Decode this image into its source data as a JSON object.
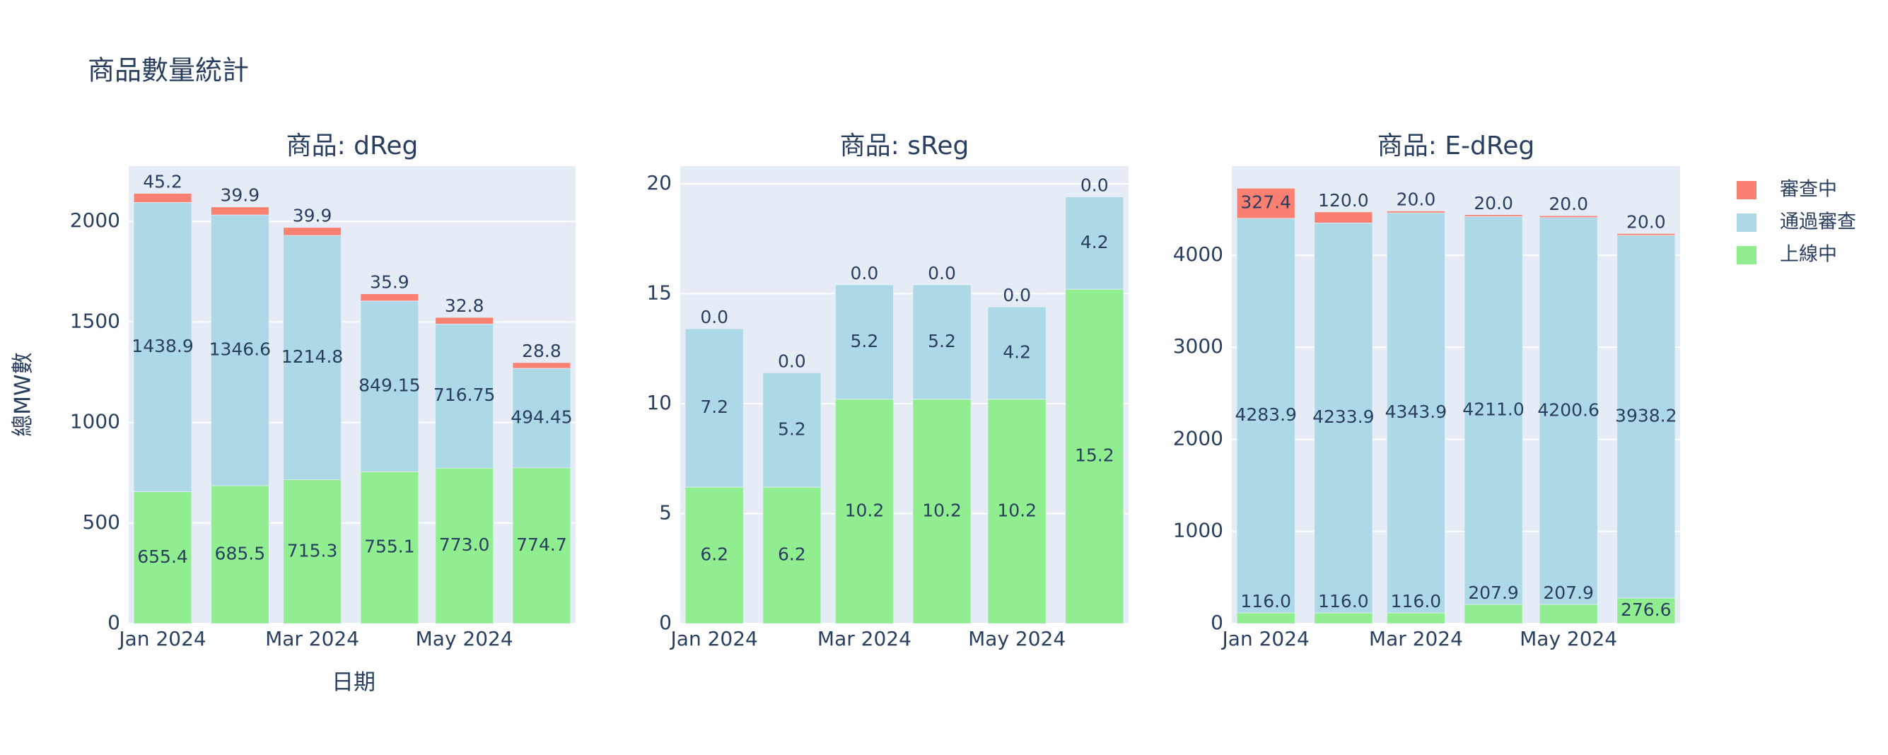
{
  "title": "商品數量統計",
  "x_title": "日期",
  "y_title": "總MW數",
  "chart_data": [
    {
      "type": "bar",
      "title": "商品: dReg",
      "x": [
        "2024-01",
        "2024-02",
        "2024-03",
        "2024-04",
        "2024-05",
        "2024-06"
      ],
      "xticks": [
        {
          "value": "2024-01",
          "label": "Jan 2024"
        },
        {
          "value": "2024-03",
          "label": "Mar 2024"
        },
        {
          "value": "2024-05",
          "label": "May 2024"
        }
      ],
      "ylim": [
        0,
        2275
      ],
      "yticks": [
        0,
        500,
        1000,
        1500,
        2000
      ],
      "grid": true,
      "series": [
        {
          "name": "上線中",
          "color": "#90ee90",
          "values": [
            655.4,
            685.5,
            715.3,
            755.1,
            773.0,
            774.7
          ],
          "value_labels": [
            "655.4",
            "685.5",
            "715.3",
            "755.1",
            "773.0",
            "774.7"
          ]
        },
        {
          "name": "通過審查",
          "color": "#add8e6",
          "values": [
            1438.9,
            1346.6,
            1214.8,
            849.15,
            716.75,
            494.45
          ],
          "value_labels": [
            "1438.9",
            "1346.6",
            "1214.8",
            "849.15",
            "716.75",
            "494.45"
          ]
        },
        {
          "name": "審查中",
          "color": "#fa8072",
          "values": [
            45.2,
            39.9,
            39.9,
            35.9,
            32.8,
            28.8
          ],
          "value_labels": [
            "45.2",
            "39.9",
            "39.9",
            "35.9",
            "32.8",
            "28.8"
          ]
        }
      ]
    },
    {
      "type": "bar",
      "title": "商品: sReg",
      "x": [
        "2024-01",
        "2024-02",
        "2024-03",
        "2024-04",
        "2024-05",
        "2024-06"
      ],
      "xticks": [
        {
          "value": "2024-01",
          "label": "Jan 2024"
        },
        {
          "value": "2024-03",
          "label": "Mar 2024"
        },
        {
          "value": "2024-05",
          "label": "May 2024"
        }
      ],
      "ylim": [
        0,
        20.8
      ],
      "yticks": [
        0,
        5,
        10,
        15,
        20
      ],
      "grid": true,
      "series": [
        {
          "name": "上線中",
          "color": "#90ee90",
          "values": [
            6.2,
            6.2,
            10.2,
            10.2,
            10.2,
            15.2
          ],
          "value_labels": [
            "6.2",
            "6.2",
            "10.2",
            "10.2",
            "10.2",
            "15.2"
          ]
        },
        {
          "name": "通過審查",
          "color": "#add8e6",
          "values": [
            7.2,
            5.2,
            5.2,
            5.2,
            4.2,
            4.2
          ],
          "value_labels": [
            "7.2",
            "5.2",
            "5.2",
            "5.2",
            "4.2",
            "4.2"
          ]
        },
        {
          "name": "審查中",
          "color": "#fa8072",
          "values": [
            0,
            0,
            0,
            0,
            0,
            0
          ],
          "value_labels": [
            "0.0",
            "0.0",
            "0.0",
            "0.0",
            "0.0",
            "0.0"
          ]
        }
      ]
    },
    {
      "type": "bar",
      "title": "商品: E-dReg",
      "x": [
        "2024-01",
        "2024-02",
        "2024-03",
        "2024-04",
        "2024-05",
        "2024-06"
      ],
      "xticks": [
        {
          "value": "2024-01",
          "label": "Jan 2024"
        },
        {
          "value": "2024-03",
          "label": "Mar 2024"
        },
        {
          "value": "2024-05",
          "label": "May 2024"
        }
      ],
      "ylim": [
        0,
        4967
      ],
      "yticks": [
        0,
        1000,
        2000,
        3000,
        4000
      ],
      "grid": true,
      "series": [
        {
          "name": "上線中",
          "color": "#90ee90",
          "values": [
            116.0,
            116.0,
            116.0,
            207.9,
            207.9,
            276.6
          ],
          "value_labels": [
            "116.0",
            "116.0",
            "116.0",
            "207.9",
            "207.9",
            "276.6"
          ]
        },
        {
          "name": "通過審查",
          "color": "#add8e6",
          "values": [
            4283.9,
            4233.9,
            4343.9,
            4211.0,
            4200.6,
            3938.2
          ],
          "value_labels": [
            "4283.9",
            "4233.9",
            "4343.9",
            "4211.0",
            "4200.6",
            "3938.2"
          ]
        },
        {
          "name": "審查中",
          "color": "#fa8072",
          "values": [
            327.4,
            120.0,
            20.0,
            20.0,
            20.0,
            20.0
          ],
          "value_labels": [
            "327.4",
            "120.0",
            "20.0",
            "20.0",
            "20.0",
            "20.0"
          ]
        }
      ]
    }
  ]
}
